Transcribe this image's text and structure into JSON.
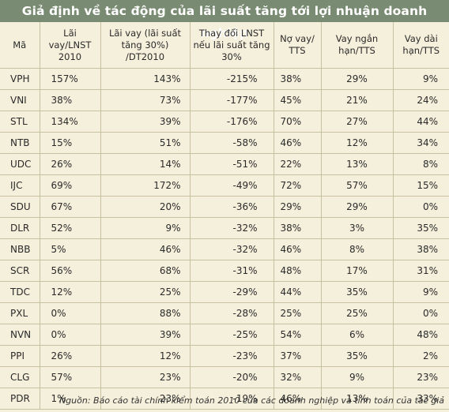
{
  "title": "Giả định về tác động của lãi suất tăng tới lợi nhuận doanh nghiệp",
  "header": {
    "col0": "Mã",
    "col1": "Lãi vay/LNST 2010",
    "col2": "Lãi vay (lãi suất tăng 30%) /DT2010",
    "col3": "Thay đổi LNST nếu lãi suất tăng 30%",
    "col4": "Nợ vay/ TTS",
    "col5": "Vay ngắn hạn/TTS",
    "col6": "Vay dài hạn/TTS"
  },
  "rows": [
    [
      "VPH",
      "157%",
      "143%",
      "-215%",
      "38%",
      "29%",
      "9%"
    ],
    [
      "VNI",
      "38%",
      "73%",
      "-177%",
      "45%",
      "21%",
      "24%"
    ],
    [
      "STL",
      "134%",
      "39%",
      "-176%",
      "70%",
      "27%",
      "44%"
    ],
    [
      "NTB",
      "15%",
      "51%",
      "-58%",
      "46%",
      "12%",
      "34%"
    ],
    [
      "UDC",
      "26%",
      "14%",
      "-51%",
      "22%",
      "13%",
      "8%"
    ],
    [
      "IJC",
      "69%",
      "172%",
      "-49%",
      "72%",
      "57%",
      "15%"
    ],
    [
      "SDU",
      "67%",
      "20%",
      "-36%",
      "29%",
      "29%",
      "0%"
    ],
    [
      "DLR",
      "52%",
      "9%",
      "-32%",
      "38%",
      "3%",
      "35%"
    ],
    [
      "NBB",
      "5%",
      "46%",
      "-32%",
      "46%",
      "8%",
      "38%"
    ],
    [
      "SCR",
      "56%",
      "68%",
      "-31%",
      "48%",
      "17%",
      "31%"
    ],
    [
      "TDC",
      "12%",
      "25%",
      "-29%",
      "44%",
      "35%",
      "9%"
    ],
    [
      "PXL",
      "0%",
      "88%",
      "-28%",
      "25%",
      "25%",
      "0%"
    ],
    [
      "NVN",
      "0%",
      "39%",
      "-25%",
      "54%",
      "6%",
      "48%"
    ],
    [
      "PPI",
      "26%",
      "12%",
      "-23%",
      "37%",
      "35%",
      "2%"
    ],
    [
      "CLG",
      "57%",
      "23%",
      "-20%",
      "32%",
      "9%",
      "23%"
    ],
    [
      "PDR",
      "1%",
      "23%",
      "-19%",
      "46%",
      "13%",
      "33%"
    ]
  ],
  "footer": "Nguồn: Báo cáo tài chính kiểm toán 2010 của các doanh nghiệp và tính toán của tác giả",
  "colors": {
    "title_bg": "#7a8b73",
    "page_bg": "#f5f0dc",
    "grid": "#c9c0a1"
  }
}
